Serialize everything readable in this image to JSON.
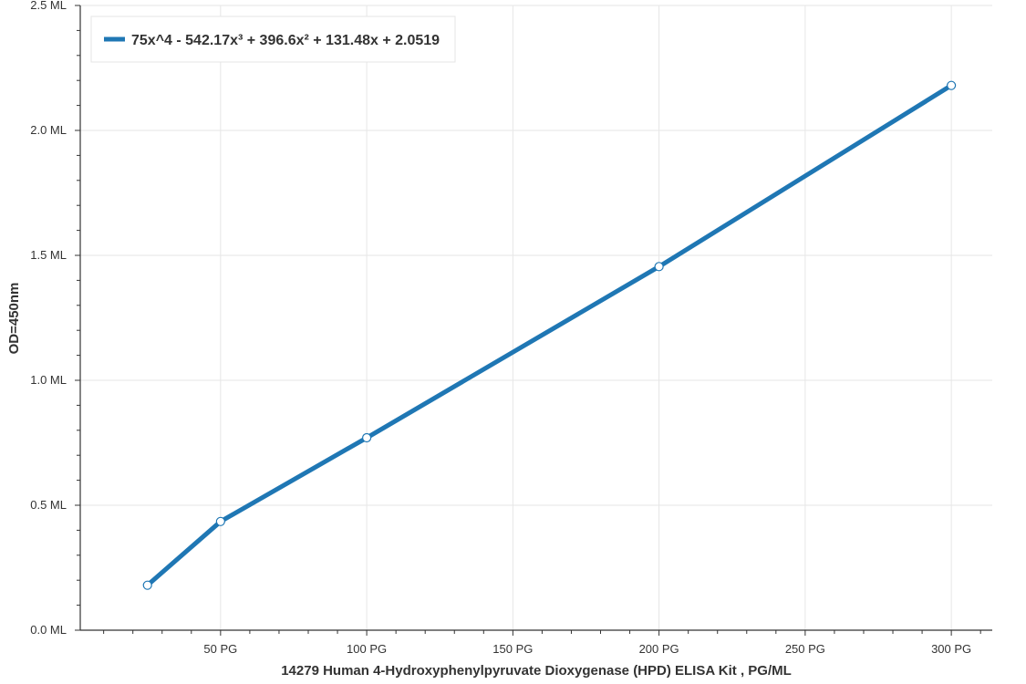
{
  "chart_data": {
    "type": "line",
    "x": [
      25,
      50,
      100,
      200,
      300
    ],
    "series": [
      {
        "name": "75x^4 - 542.17x³ + 396.6x² + 131.48x + 2.0519",
        "values": [
          0.18,
          0.435,
          0.77,
          1.455,
          2.18
        ]
      }
    ],
    "xlabel": "14279 Human 4-Hydroxyphenylpyruvate Dioxygenase (HPD) ELISA Kit , PG/ML",
    "ylabel": "OD=450nm",
    "xlim": [
      2,
      314
    ],
    "ylim": [
      0,
      2.5
    ],
    "x_ticks": [
      50,
      100,
      150,
      200,
      250,
      300
    ],
    "x_tick_labels": [
      "50 PG",
      "100 PG",
      "150 PG",
      "200 PG",
      "250 PG",
      "300 PG"
    ],
    "y_ticks": [
      0,
      0.5,
      1.0,
      1.5,
      2.0,
      2.5
    ],
    "y_tick_labels": [
      "0.0 ML",
      "0.5 ML",
      "1.0 ML",
      "1.5 ML",
      "2.0 ML",
      "2.5 ML"
    ],
    "grid": true,
    "legend_position": "top-left",
    "colors": {
      "series": "#1f77b4",
      "axis": "#333333",
      "grid": "#e6e6e6"
    }
  }
}
